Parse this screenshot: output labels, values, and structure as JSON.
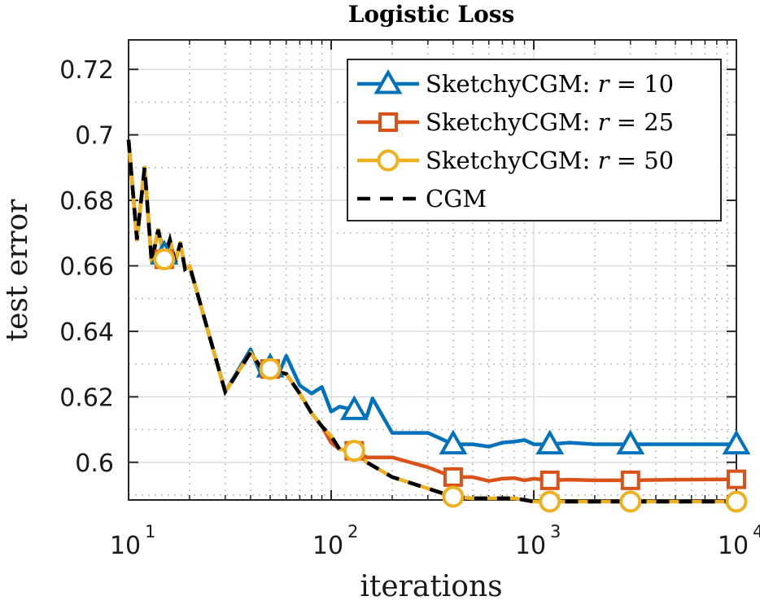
{
  "chart_data": {
    "type": "line",
    "title": "Logistic Loss",
    "xlabel": "iterations",
    "ylabel": "test error",
    "xscale": "log",
    "xlim": [
      10,
      10000
    ],
    "ylim": [
      0.5885,
      0.729
    ],
    "grid": true,
    "minor_grid": true,
    "legend_position": "top-right",
    "x_ticks": [
      {
        "value": 10,
        "base": "10",
        "exp": "1"
      },
      {
        "value": 100,
        "base": "10",
        "exp": "2"
      },
      {
        "value": 1000,
        "base": "10",
        "exp": "3"
      },
      {
        "value": 10000,
        "base": "10",
        "exp": "4"
      }
    ],
    "y_ticks": [
      {
        "value": 0.6,
        "label": "0.6"
      },
      {
        "value": 0.62,
        "label": "0.62"
      },
      {
        "value": 0.64,
        "label": "0.64"
      },
      {
        "value": 0.66,
        "label": "0.66"
      },
      {
        "value": 0.68,
        "label": "0.68"
      },
      {
        "value": 0.7,
        "label": "0.7"
      },
      {
        "value": 0.72,
        "label": "0.72"
      }
    ],
    "series": [
      {
        "name": "SketchyCGM: r = 10",
        "legend_prefix": "SketchyCGM: ",
        "legend_var": "r",
        "legend_value": " = 10",
        "color": "#0072BD",
        "marker": "triangle",
        "dash": "solid",
        "x": [
          10,
          11,
          12,
          13,
          14,
          15,
          16,
          17,
          18,
          19,
          20,
          30,
          40,
          45,
          50,
          55,
          60,
          70,
          80,
          90,
          100,
          110,
          130,
          150,
          160,
          200,
          300,
          400,
          500,
          600,
          700,
          800,
          900,
          1000,
          1200,
          1500,
          2000,
          3000,
          4000,
          5000,
          7000,
          10000
        ],
        "y": [
          0.6985,
          0.668,
          0.69,
          0.661,
          0.671,
          0.6635,
          0.668,
          0.661,
          0.667,
          0.659,
          0.66,
          0.6215,
          0.6345,
          0.627,
          0.629,
          0.627,
          0.6325,
          0.6235,
          0.621,
          0.623,
          0.6155,
          0.617,
          0.616,
          0.614,
          0.6195,
          0.609,
          0.609,
          0.6055,
          0.6055,
          0.6048,
          0.606,
          0.6063,
          0.6068,
          0.6055,
          0.6055,
          0.606,
          0.6055,
          0.6055,
          0.6055,
          0.6055,
          0.6055,
          0.6055
        ],
        "marker_x": [
          15,
          50,
          130,
          400,
          1200,
          3000,
          10000
        ]
      },
      {
        "name": "SketchyCGM: r = 25",
        "legend_prefix": "SketchyCGM: ",
        "legend_var": "r",
        "legend_value": " = 25",
        "color": "#D95319",
        "marker": "square",
        "dash": "solid",
        "x": [
          10,
          11,
          12,
          13,
          14,
          15,
          16,
          17,
          18,
          19,
          20,
          30,
          40,
          45,
          50,
          55,
          60,
          70,
          80,
          90,
          100,
          110,
          130,
          150,
          200,
          300,
          400,
          500,
          600,
          700,
          800,
          900,
          1000,
          1200,
          1500,
          2000,
          3000,
          5000,
          10000
        ],
        "y": [
          0.6985,
          0.668,
          0.69,
          0.661,
          0.671,
          0.662,
          0.668,
          0.661,
          0.667,
          0.659,
          0.66,
          0.6215,
          0.6335,
          0.629,
          0.6285,
          0.6275,
          0.627,
          0.621,
          0.615,
          0.611,
          0.606,
          0.604,
          0.6035,
          0.6015,
          0.6015,
          0.5985,
          0.5955,
          0.5955,
          0.5943,
          0.595,
          0.5952,
          0.5945,
          0.595,
          0.5945,
          0.5947,
          0.5945,
          0.5945,
          0.5947,
          0.5948
        ],
        "marker_x": [
          15,
          50,
          130,
          400,
          1200,
          3000,
          10000
        ]
      },
      {
        "name": "SketchyCGM: r = 50",
        "legend_prefix": "SketchyCGM: ",
        "legend_var": "r",
        "legend_value": " = 50",
        "color": "#EDB120",
        "marker": "circle",
        "dash": "solid",
        "x": [
          10,
          11,
          12,
          13,
          14,
          15,
          16,
          17,
          18,
          19,
          20,
          30,
          40,
          45,
          50,
          55,
          60,
          70,
          80,
          90,
          100,
          110,
          130,
          150,
          200,
          300,
          400,
          500,
          600,
          700,
          800,
          900,
          1000,
          1200,
          1500,
          2000,
          3000,
          5000,
          10000
        ],
        "y": [
          0.6985,
          0.668,
          0.69,
          0.661,
          0.671,
          0.662,
          0.668,
          0.661,
          0.667,
          0.659,
          0.66,
          0.6215,
          0.6335,
          0.629,
          0.6285,
          0.6275,
          0.627,
          0.621,
          0.615,
          0.611,
          0.608,
          0.604,
          0.6035,
          0.6,
          0.5955,
          0.592,
          0.5895,
          0.589,
          0.589,
          0.589,
          0.589,
          0.5885,
          0.588,
          0.588,
          0.588,
          0.588,
          0.588,
          0.588,
          0.588
        ],
        "marker_x": [
          15,
          50,
          130,
          400,
          1200,
          3000,
          10000
        ]
      },
      {
        "name": "CGM",
        "legend_prefix": "CGM",
        "legend_var": "",
        "legend_value": "",
        "color": "#000000",
        "marker": "none",
        "dash": "dashed",
        "x": [
          10,
          11,
          12,
          13,
          14,
          15,
          16,
          17,
          18,
          19,
          20,
          30,
          40,
          45,
          50,
          55,
          60,
          70,
          80,
          90,
          100,
          110,
          130,
          150,
          200,
          300,
          400,
          500,
          600,
          700,
          800,
          900,
          1000,
          1200,
          1500,
          2000,
          3000,
          5000,
          10000
        ],
        "y": [
          0.6985,
          0.668,
          0.69,
          0.661,
          0.671,
          0.662,
          0.668,
          0.661,
          0.667,
          0.659,
          0.66,
          0.6215,
          0.6335,
          0.629,
          0.6285,
          0.6275,
          0.627,
          0.621,
          0.615,
          0.611,
          0.608,
          0.604,
          0.6035,
          0.6,
          0.5955,
          0.592,
          0.5895,
          0.589,
          0.589,
          0.589,
          0.589,
          0.5885,
          0.588,
          0.588,
          0.588,
          0.588,
          0.588,
          0.588,
          0.588
        ],
        "marker_x": []
      }
    ]
  }
}
